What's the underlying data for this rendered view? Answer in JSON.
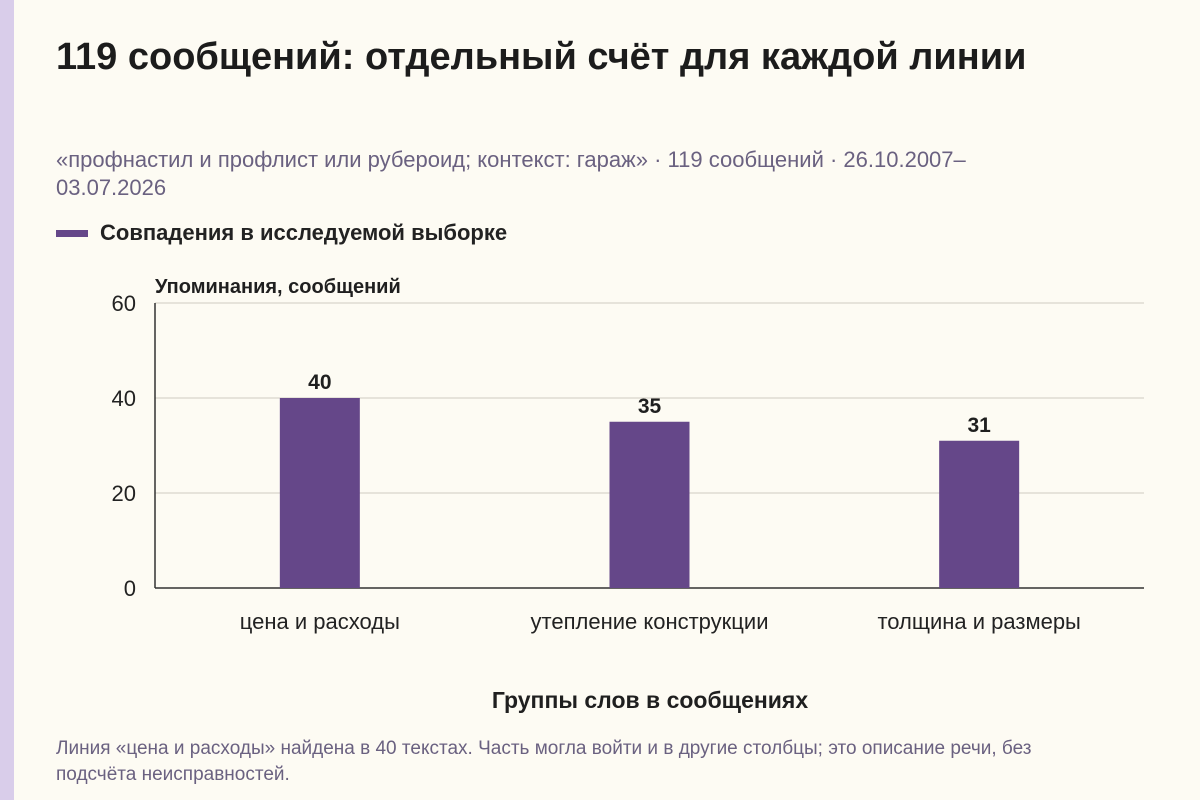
{
  "title": "119 сообщений: отдельный счёт для каждой линии",
  "subtitle": "«профнастил и профлист или рубероид; контекст: гараж» · 119 сообщений · 26.10.2007–03.07.2026",
  "legend": {
    "label": "Совпадения в исследуемой выборке",
    "color": "#654789"
  },
  "note": "Линия «цена и расходы» найдена в 40 текстах. Часть могла войти и в другие столбцы; это описание речи, без подсчёта неисправностей.",
  "chart_data": {
    "type": "bar",
    "categories": [
      "цена и расходы",
      "утепление конструкции",
      "толщина и размеры"
    ],
    "series": [
      {
        "name": "Совпадения в исследуемой выборке",
        "values": [
          40,
          35,
          31
        ],
        "color": "#654789"
      }
    ],
    "data_labels": [
      "40",
      "35",
      "31"
    ],
    "xlabel": "Группы слов в сообщениях",
    "ylabel": "Упоминания, сообщений",
    "ylim": [
      0,
      60
    ],
    "yticks": [
      0,
      20,
      40,
      60
    ],
    "grid": true,
    "legend_position": "top-left"
  }
}
